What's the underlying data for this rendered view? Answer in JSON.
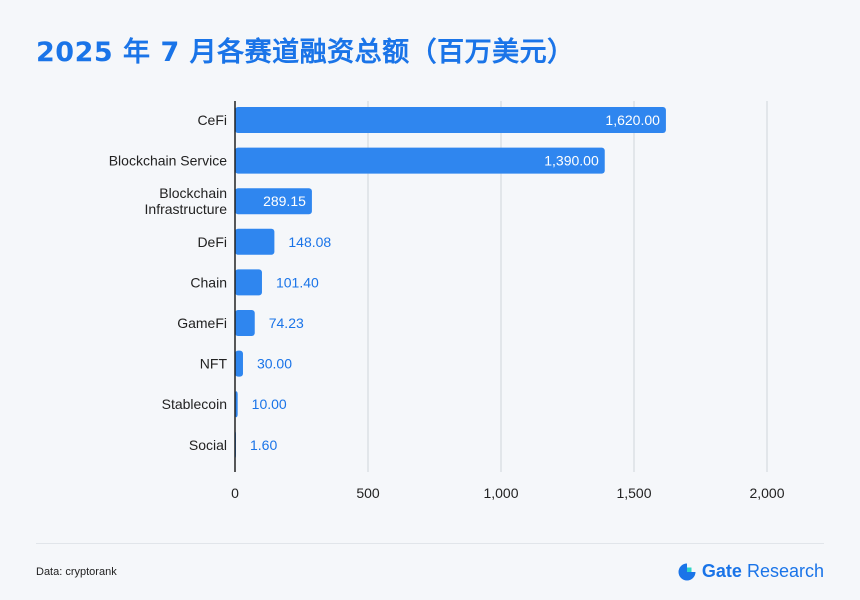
{
  "title": "2025 年 7 月各赛道融资总额（百万美元）",
  "source": "Data: cryptorank",
  "brand": {
    "name": "Gate",
    "suffix": "Research",
    "icon": "gate-logo-icon"
  },
  "colors": {
    "bar": "#2f86ef",
    "accent": "#1a74e8",
    "grid": "#cfd4da",
    "axis": "#222222"
  },
  "chart_data": {
    "type": "bar",
    "orientation": "horizontal",
    "categories": [
      "CeFi",
      "Blockchain Service",
      "Blockchain Infrastructure",
      "DeFi",
      "Chain",
      "GameFi",
      "NFT",
      "Stablecoin",
      "Social"
    ],
    "values": [
      1620.0,
      1390.0,
      289.15,
      148.08,
      101.4,
      74.23,
      30.0,
      10.0,
      1.6
    ],
    "value_labels": [
      "1,620.00",
      "1,390.00",
      "289.15",
      "148.08",
      "101.40",
      "74.23",
      "30.00",
      "10.00",
      "1.60"
    ],
    "xlim": [
      0,
      2000
    ],
    "xticks": [
      0,
      500,
      1000,
      1500,
      2000
    ],
    "xtick_labels": [
      "0",
      "500",
      "1,000",
      "1,500",
      "2,000"
    ],
    "grid": "vertical",
    "title": "2025 年 7 月各赛道融资总额（百万美元）",
    "xlabel": "",
    "ylabel": ""
  }
}
